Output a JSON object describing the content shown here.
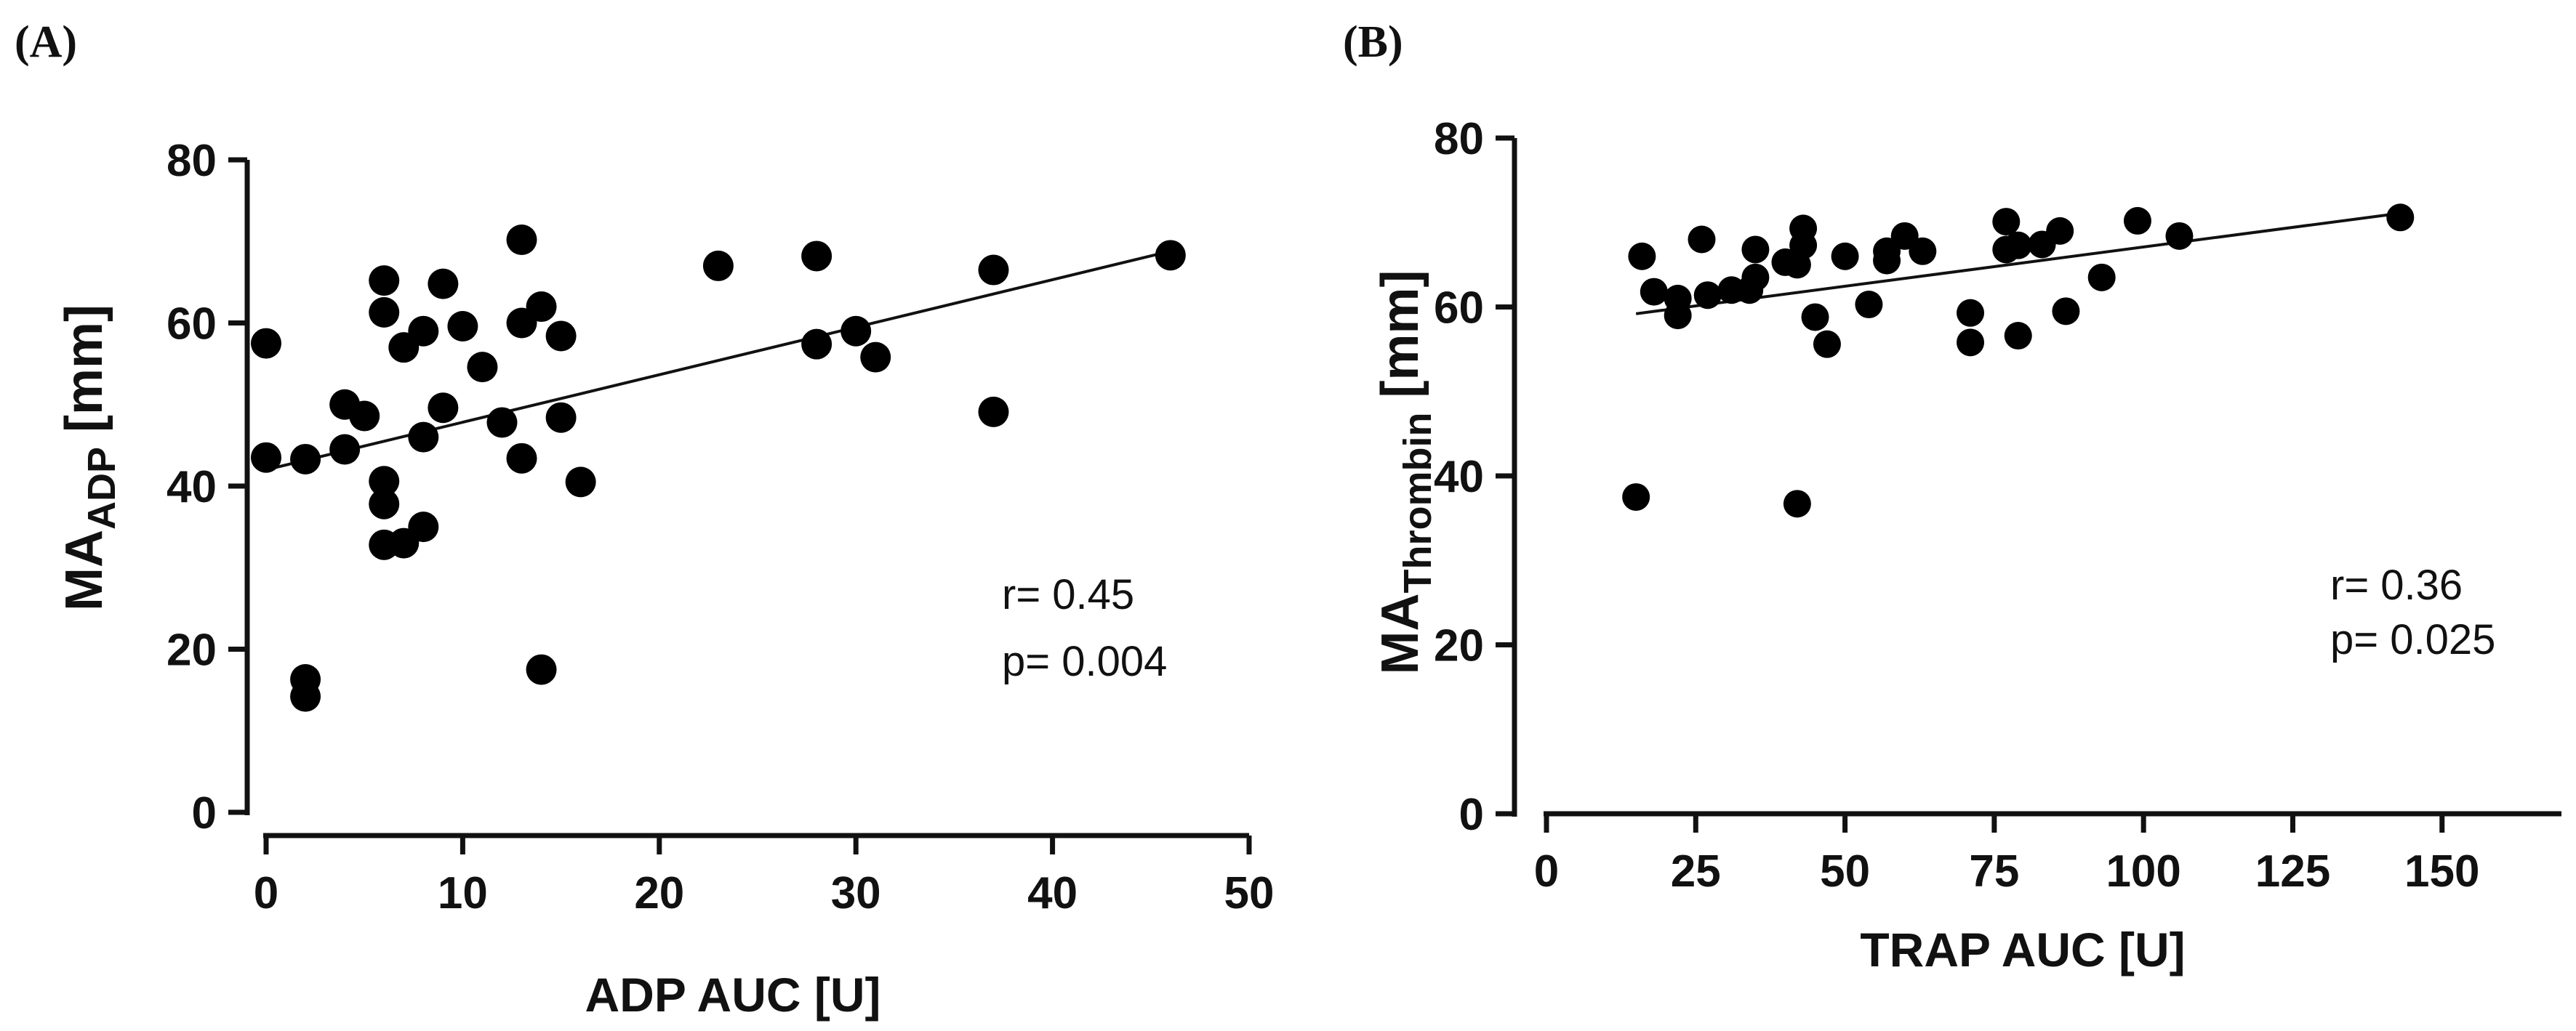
{
  "chart_data": [
    {
      "type": "scatter",
      "panel": "(A)",
      "xlabel": "ADP AUC [U]",
      "ylabel_main": "MA",
      "ylabel_sub": "ADP",
      "ylabel_unit": " [mm]",
      "xlim": [
        0,
        50
      ],
      "ylim": [
        0,
        80
      ],
      "xticks": [
        0,
        10,
        20,
        30,
        40,
        50
      ],
      "yticks": [
        0,
        20,
        40,
        60,
        80
      ],
      "x": [
        0,
        0,
        2,
        2,
        2,
        4,
        4,
        5,
        6,
        6,
        6,
        6,
        6,
        7,
        7,
        8,
        8,
        8,
        9,
        9,
        10,
        11,
        12,
        13,
        13,
        13,
        14,
        14,
        15,
        15,
        16,
        23,
        28,
        28,
        30,
        31,
        37,
        37,
        46
      ],
      "y": [
        57.5,
        43.5,
        43.3,
        16.3,
        14.2,
        50,
        44.5,
        48.6,
        65.2,
        61.3,
        40.6,
        37.8,
        32.8,
        33,
        57,
        59,
        46,
        35,
        64.8,
        49.6,
        59.6,
        54.6,
        47.8,
        70.2,
        60,
        43.4,
        62,
        17.5,
        58.4,
        48.4,
        40.5,
        67,
        68.2,
        57.4,
        59,
        55.8,
        66.5,
        49.1,
        68.3
      ],
      "fit": {
        "x0": 0,
        "y0": 42,
        "x1": 46,
        "y1": 68.8
      },
      "r": "r= 0.45",
      "p": "p= 0.004"
    },
    {
      "type": "scatter",
      "panel": "(B)",
      "xlabel": "TRAP AUC [U]",
      "ylabel_main": "MA",
      "ylabel_sub": "Thrombin",
      "ylabel_unit": " [mm]",
      "xlim": [
        0,
        170
      ],
      "ylim": [
        0,
        80
      ],
      "xticks": [
        0,
        25,
        50,
        75,
        100,
        125,
        150
      ],
      "yticks": [
        0,
        20,
        40,
        60,
        80
      ],
      "x": [
        15,
        16,
        18,
        22,
        22,
        26,
        27,
        31,
        34,
        35,
        35,
        40,
        42,
        43,
        43,
        45,
        47,
        50,
        54,
        57,
        57,
        60,
        63,
        71,
        71,
        77,
        77,
        79,
        79,
        83,
        86,
        87,
        93,
        99,
        106,
        143
      ],
      "y": [
        37.5,
        66,
        61.8,
        61,
        59,
        68,
        61.4,
        62,
        62,
        63.5,
        66.8,
        65.3,
        65,
        67.3,
        69.3,
        58.8,
        55.6,
        66,
        60.3,
        65.5,
        66.6,
        68.4,
        66.6,
        59.3,
        55.8,
        70.1,
        66.8,
        67.3,
        56.6,
        67.4,
        69,
        59.5,
        63.5,
        70.2,
        68.4,
        70.6
      ],
      "extra_points": [
        {
          "x": 42,
          "y": 36.7
        }
      ],
      "fit": {
        "x0": 15,
        "y0": 59.2,
        "x1": 143,
        "y1": 71.1
      },
      "r": "r= 0.36",
      "p": "p= 0.025"
    }
  ]
}
